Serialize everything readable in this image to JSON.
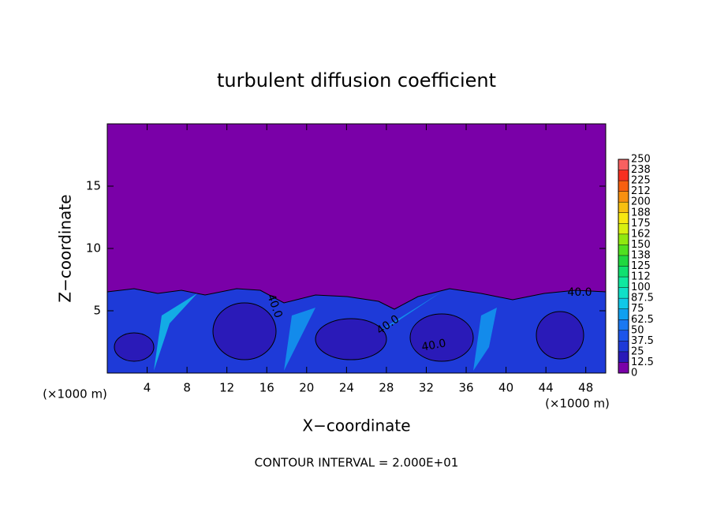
{
  "chart_data": {
    "type": "contour",
    "title": "turbulent diffusion coefficient",
    "x_label": "X−coordinate",
    "y_label": "Z−coordinate",
    "x_unit_left": "(×1000 m)",
    "x_unit_right": "(×1000 m)",
    "footer": "CONTOUR INTERVAL = 2.000E+01",
    "xlim": [
      0,
      50
    ],
    "xticks": [
      4,
      8,
      12,
      16,
      20,
      24,
      28,
      32,
      36,
      40,
      44,
      48
    ],
    "ylim": [
      0,
      20
    ],
    "yticks": [
      5,
      10,
      15
    ],
    "contour_labels": [
      "40.0",
      "40.0",
      "40.0",
      "40.0"
    ],
    "colorbar": {
      "ticks": [
        0,
        12.5,
        25,
        37.5,
        50,
        62.5,
        75,
        87.5,
        100,
        112.5,
        125,
        137.5,
        150,
        162.5,
        175,
        187.5,
        200,
        212.5,
        225,
        237.5,
        250
      ],
      "labels": [
        "0",
        "12.5",
        "25",
        "37.5",
        "50",
        "62.5",
        "75",
        "87.5",
        "100",
        "112",
        "125",
        "138",
        "150",
        "162",
        "175",
        "188",
        "200",
        "212",
        "225",
        "238",
        "250"
      ],
      "colors": [
        "#7a00a8",
        "#2a1ab8",
        "#1e3ad8",
        "#1c55ea",
        "#1a78f2",
        "#10a0f0",
        "#10c8e8",
        "#10e0c8",
        "#10e8a0",
        "#10e070",
        "#20d840",
        "#50e020",
        "#90e810",
        "#d8f010",
        "#f8e810",
        "#f8c010",
        "#f89010",
        "#f86010",
        "#f83020",
        "#f86060"
      ]
    }
  }
}
